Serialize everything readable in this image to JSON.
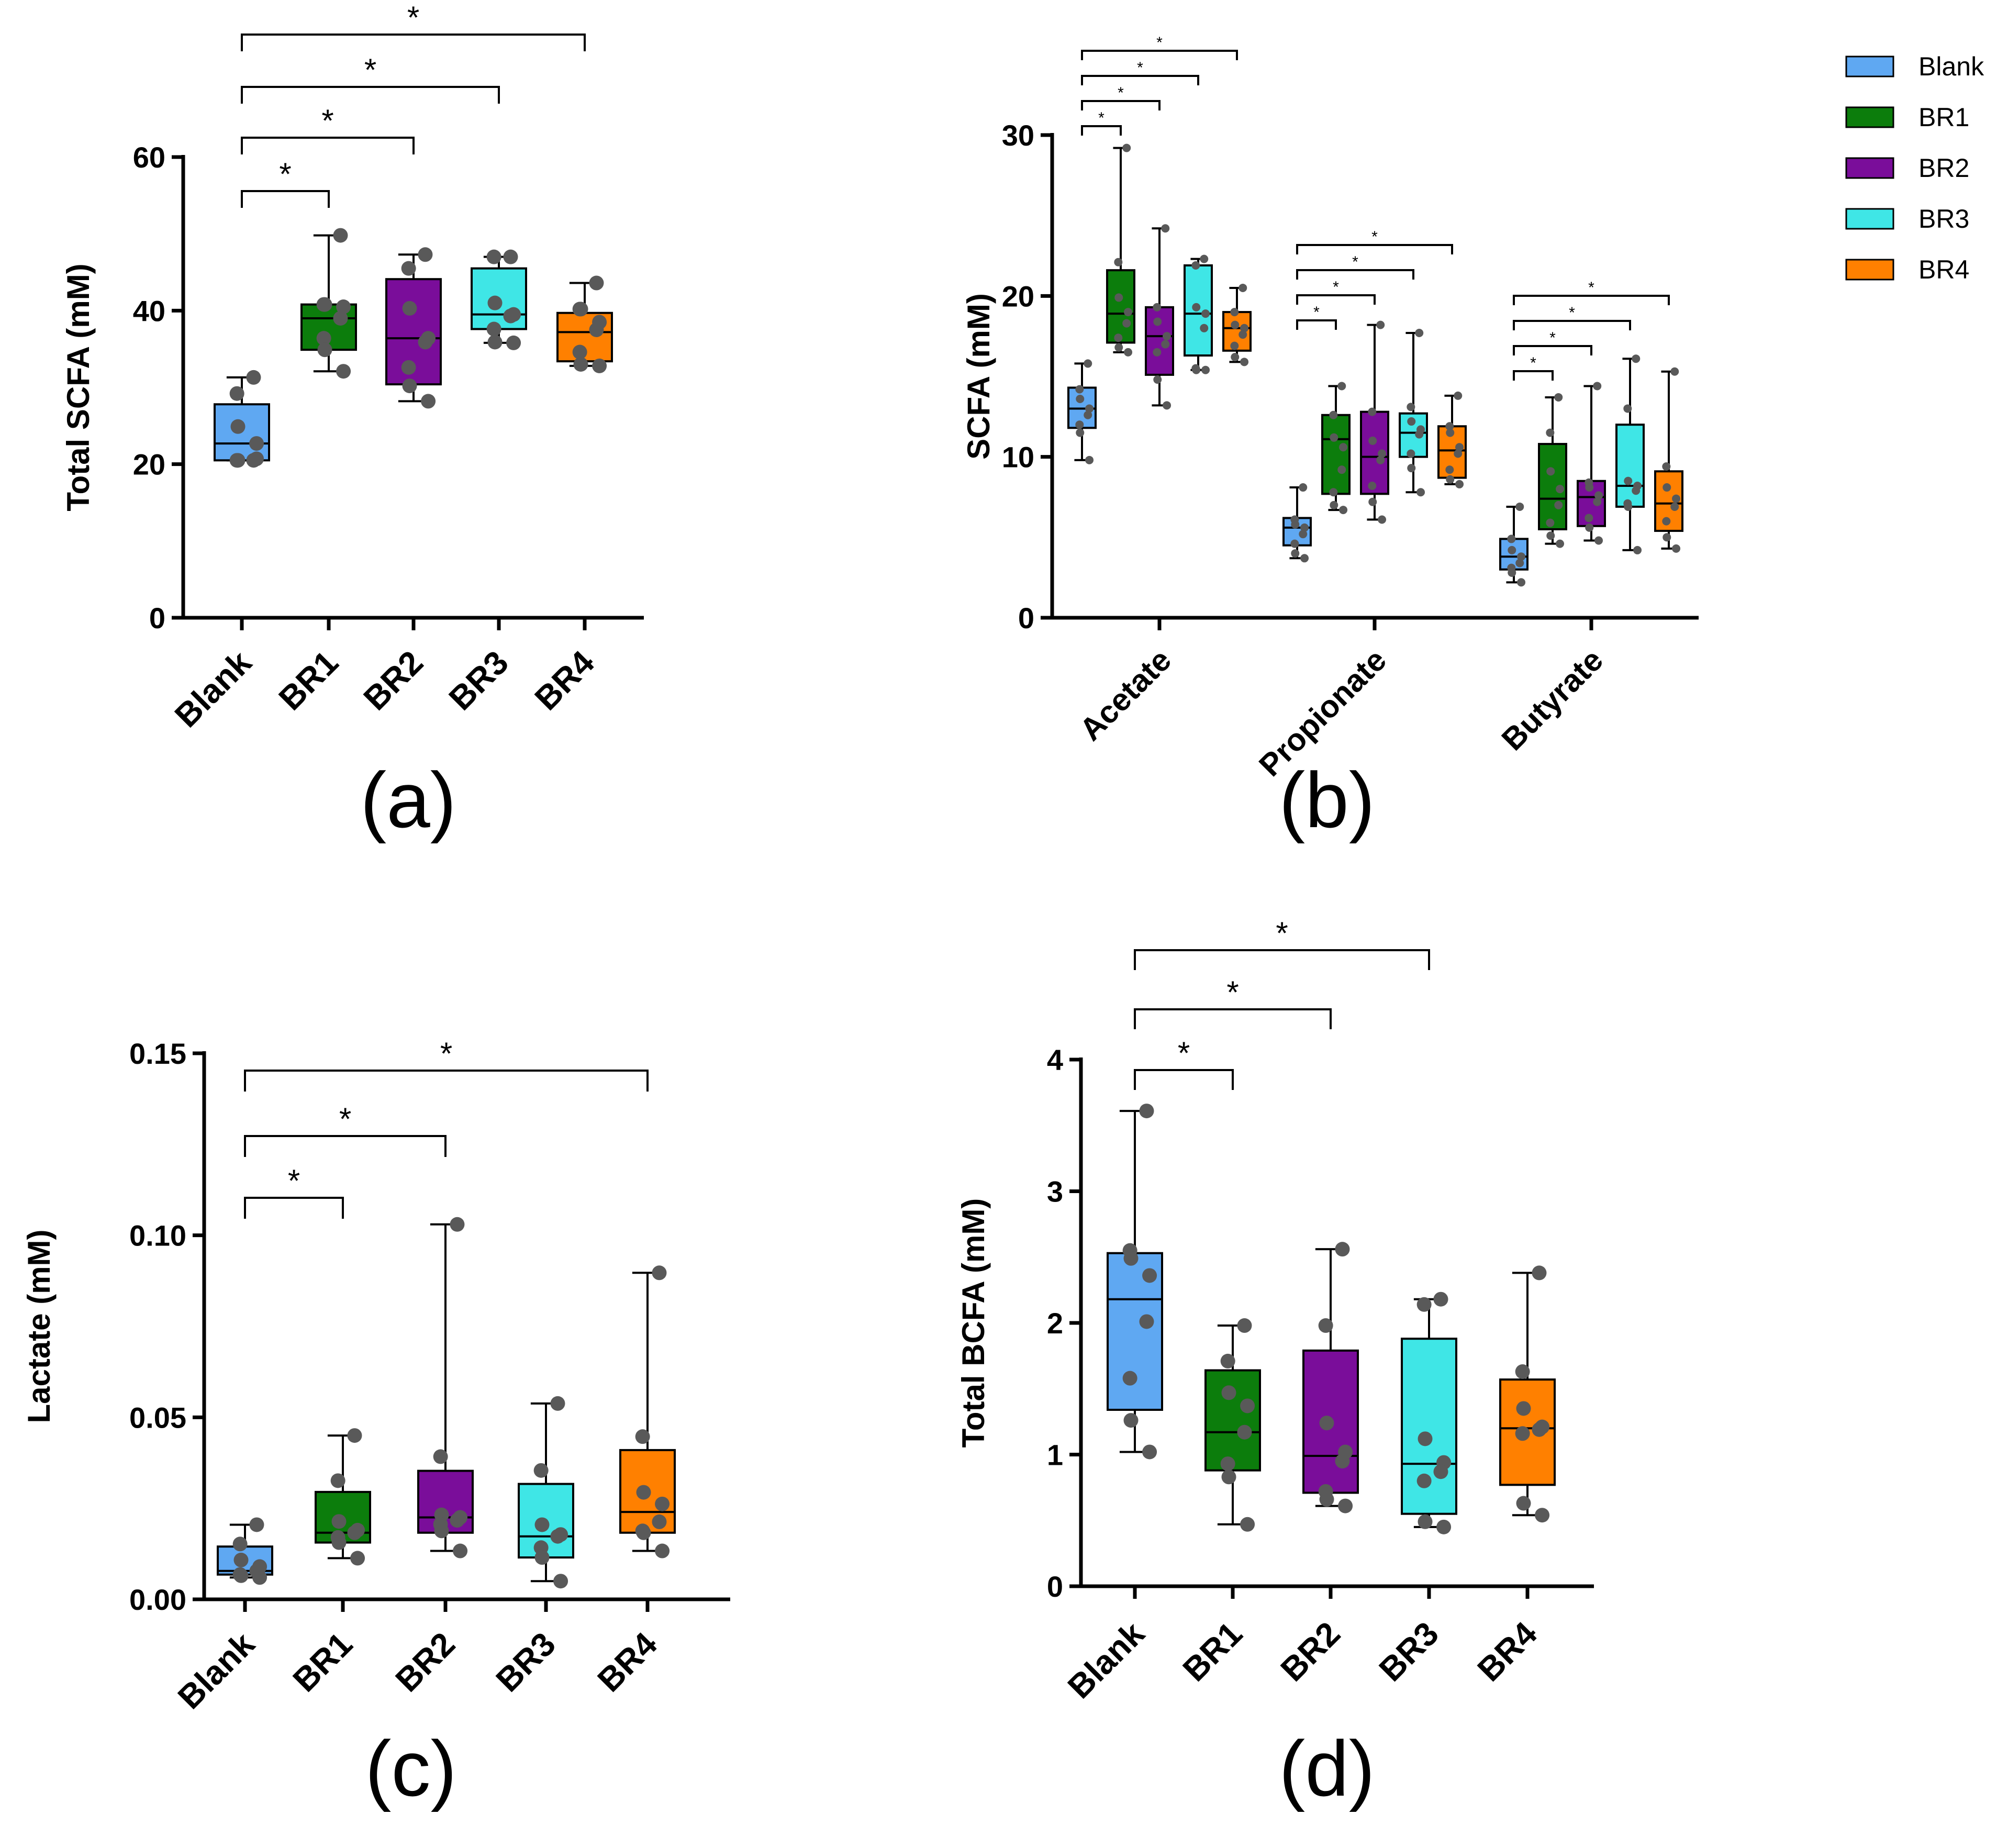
{
  "colors": {
    "Blank": "#5fa8f2",
    "BR1": "#0c7d0c",
    "BR2": "#7a0d9a",
    "BR3": "#3fe6e6",
    "BR4": "#ff8000",
    "point": "#595959"
  },
  "legend": {
    "entries": [
      "Blank",
      "BR1",
      "BR2",
      "BR3",
      "BR4"
    ]
  },
  "chart_data": [
    {
      "panel": "a",
      "panel_label": "(a)",
      "type": "box",
      "ylabel": "Total SCFA (mM)",
      "ylim": [
        0,
        60
      ],
      "yticks": [
        0,
        20,
        40,
        60
      ],
      "ytick_labels": [
        "0",
        "20",
        "40",
        "60"
      ],
      "categories": [
        "Blank",
        "BR1",
        "BR2",
        "BR3",
        "BR4"
      ],
      "boxes": [
        {
          "name": "Blank",
          "min": 20.5,
          "q1": 20.5,
          "median": 22.7,
          "q3": 27.8,
          "max": 31.3,
          "points": [
            31.3,
            29.2,
            24.9,
            22.7,
            20.5,
            20.5,
            20.5,
            20.7
          ]
        },
        {
          "name": "BR1",
          "min": 32.1,
          "q1": 34.9,
          "median": 39.0,
          "q3": 40.8,
          "max": 49.8,
          "points": [
            49.8,
            40.8,
            40.8,
            40.5,
            39.0,
            36.4,
            34.9,
            32.1
          ]
        },
        {
          "name": "BR2",
          "min": 28.2,
          "q1": 30.4,
          "median": 36.4,
          "q3": 44.1,
          "max": 47.3,
          "points": [
            47.3,
            45.5,
            40.3,
            36.4,
            35.9,
            32.6,
            30.2,
            28.2
          ]
        },
        {
          "name": "BR3",
          "min": 35.8,
          "q1": 37.6,
          "median": 39.5,
          "q3": 45.5,
          "max": 47.0,
          "points": [
            47.0,
            47.0,
            41.0,
            39.5,
            39.3,
            37.6,
            35.9,
            35.8
          ]
        },
        {
          "name": "BR4",
          "min": 32.8,
          "q1": 33.4,
          "median": 37.2,
          "q3": 39.7,
          "max": 43.6,
          "points": [
            43.6,
            40.2,
            40.2,
            38.5,
            37.5,
            34.6,
            33.0,
            32.8
          ]
        }
      ],
      "significance": [
        {
          "from": "Blank",
          "to": "BR1",
          "label": "*"
        },
        {
          "from": "Blank",
          "to": "BR2",
          "label": "*"
        },
        {
          "from": "Blank",
          "to": "BR3",
          "label": "*"
        },
        {
          "from": "Blank",
          "to": "BR4",
          "label": "*"
        }
      ]
    },
    {
      "panel": "b",
      "panel_label": "(b)",
      "type": "grouped-box",
      "ylabel": "SCFA (mM)",
      "ylim": [
        0,
        30
      ],
      "yticks": [
        0,
        10,
        20,
        30
      ],
      "ytick_labels": [
        "0",
        "10",
        "20",
        "30"
      ],
      "groups": [
        "Acetate",
        "Propionate",
        "Butyrate"
      ],
      "series_names": [
        "Blank",
        "BR1",
        "BR2",
        "BR3",
        "BR4"
      ],
      "boxes": [
        [
          {
            "name": "Blank",
            "min": 9.8,
            "q1": 11.8,
            "median": 13.0,
            "q3": 14.3,
            "max": 15.8,
            "points": [
              15.8,
              14.2,
              13.6,
              13.0,
              12.6,
              12.0,
              11.5,
              9.8
            ]
          },
          {
            "name": "BR1",
            "min": 16.5,
            "q1": 17.1,
            "median": 18.9,
            "q3": 21.6,
            "max": 29.2,
            "points": [
              29.2,
              22.1,
              19.9,
              19.0,
              18.3,
              17.4,
              16.8,
              16.5
            ]
          },
          {
            "name": "BR2",
            "min": 13.2,
            "q1": 15.1,
            "median": 17.5,
            "q3": 19.3,
            "max": 24.2,
            "points": [
              24.2,
              19.3,
              18.4,
              17.5,
              17.0,
              16.5,
              14.8,
              13.2
            ]
          },
          {
            "name": "BR3",
            "min": 15.4,
            "q1": 16.3,
            "median": 18.9,
            "q3": 21.9,
            "max": 22.3,
            "points": [
              22.3,
              21.9,
              19.3,
              18.9,
              18.0,
              15.5,
              15.4,
              15.4
            ]
          },
          {
            "name": "BR4",
            "min": 15.9,
            "q1": 16.6,
            "median": 18.0,
            "q3": 19.0,
            "max": 20.5,
            "points": [
              20.5,
              19.0,
              18.2,
              18.0,
              17.6,
              16.9,
              16.2,
              15.9
            ]
          }
        ],
        [
          {
            "name": "Blank",
            "min": 3.7,
            "q1": 4.5,
            "median": 5.6,
            "q3": 6.2,
            "max": 8.1,
            "points": [
              8.1,
              6.1,
              5.8,
              5.6,
              5.2,
              4.6,
              4.0,
              3.7
            ]
          },
          {
            "name": "BR1",
            "min": 6.7,
            "q1": 7.7,
            "median": 11.1,
            "q3": 12.6,
            "max": 14.4,
            "points": [
              14.4,
              12.6,
              11.2,
              10.6,
              9.2,
              7.8,
              7.0,
              6.7
            ]
          },
          {
            "name": "BR2",
            "min": 6.1,
            "q1": 7.7,
            "median": 10.0,
            "q3": 12.8,
            "max": 18.2,
            "points": [
              18.2,
              12.8,
              11.0,
              10.2,
              9.8,
              8.2,
              7.2,
              6.1
            ]
          },
          {
            "name": "BR3",
            "min": 7.8,
            "q1": 10.0,
            "median": 11.5,
            "q3": 12.7,
            "max": 17.7,
            "points": [
              17.7,
              13.1,
              12.2,
              11.7,
              11.4,
              10.2,
              9.3,
              7.8
            ]
          },
          {
            "name": "BR4",
            "min": 8.3,
            "q1": 8.7,
            "median": 10.4,
            "q3": 11.9,
            "max": 13.8,
            "points": [
              13.8,
              11.9,
              11.5,
              10.6,
              10.2,
              9.2,
              8.6,
              8.3
            ]
          }
        ],
        [
          {
            "name": "Blank",
            "min": 2.2,
            "q1": 3.0,
            "median": 3.8,
            "q3": 4.9,
            "max": 6.9,
            "points": [
              6.9,
              4.9,
              4.2,
              3.8,
              3.4,
              3.1,
              2.8,
              2.2
            ]
          },
          {
            "name": "BR1",
            "min": 4.6,
            "q1": 5.5,
            "median": 7.4,
            "q3": 10.8,
            "max": 13.7,
            "points": [
              13.7,
              11.5,
              9.1,
              8.0,
              7.0,
              5.9,
              5.1,
              4.6
            ]
          },
          {
            "name": "BR2",
            "min": 4.8,
            "q1": 5.7,
            "median": 7.5,
            "q3": 8.5,
            "max": 14.4,
            "points": [
              14.4,
              8.4,
              8.1,
              7.6,
              7.2,
              6.2,
              5.6,
              4.8
            ]
          },
          {
            "name": "BR3",
            "min": 4.2,
            "q1": 6.9,
            "median": 8.2,
            "q3": 12.0,
            "max": 16.1,
            "points": [
              16.1,
              13.0,
              8.5,
              8.2,
              7.9,
              7.1,
              6.9,
              4.2
            ]
          },
          {
            "name": "BR4",
            "min": 4.3,
            "q1": 5.4,
            "median": 7.1,
            "q3": 9.1,
            "max": 15.3,
            "points": [
              15.3,
              9.4,
              8.1,
              7.4,
              6.9,
              6.0,
              5.0,
              4.3
            ]
          }
        ]
      ],
      "significance": [
        {
          "group": "Acetate",
          "pairs": [
            [
              "Blank",
              "BR1"
            ],
            [
              "Blank",
              "BR2"
            ],
            [
              "Blank",
              "BR3"
            ],
            [
              "Blank",
              "BR4"
            ]
          ],
          "label": "*"
        },
        {
          "group": "Propionate",
          "pairs": [
            [
              "Blank",
              "BR1"
            ],
            [
              "Blank",
              "BR2"
            ],
            [
              "Blank",
              "BR3"
            ],
            [
              "Blank",
              "BR4"
            ]
          ],
          "label": "*"
        },
        {
          "group": "Butyrate",
          "pairs": [
            [
              "Blank",
              "BR1"
            ],
            [
              "Blank",
              "BR2"
            ],
            [
              "Blank",
              "BR3"
            ],
            [
              "Blank",
              "BR4"
            ]
          ],
          "label": "*"
        }
      ],
      "legend": "top-right"
    },
    {
      "panel": "c",
      "panel_label": "(c)",
      "type": "box",
      "ylabel": "Lactate (mM)",
      "ylim": [
        0,
        0.15
      ],
      "yticks": [
        0,
        0.05,
        0.1,
        0.15
      ],
      "ytick_labels": [
        "0.00",
        "0.05",
        "0.10",
        "0.15"
      ],
      "categories": [
        "Blank",
        "BR1",
        "BR2",
        "BR3",
        "BR4"
      ],
      "boxes": [
        {
          "name": "Blank",
          "min": 0.006,
          "q1": 0.0068,
          "median": 0.0078,
          "q3": 0.0145,
          "max": 0.0205,
          "points": [
            0.0205,
            0.0152,
            0.0108,
            0.009,
            0.0078,
            0.0068,
            0.0065,
            0.006
          ]
        },
        {
          "name": "BR1",
          "min": 0.0113,
          "q1": 0.0156,
          "median": 0.0183,
          "q3": 0.0295,
          "max": 0.045,
          "points": [
            0.045,
            0.0326,
            0.0214,
            0.019,
            0.0183,
            0.017,
            0.0156,
            0.0113
          ]
        },
        {
          "name": "BR2",
          "min": 0.0133,
          "q1": 0.0183,
          "median": 0.0225,
          "q3": 0.0353,
          "max": 0.103,
          "points": [
            0.103,
            0.0392,
            0.0232,
            0.0225,
            0.0217,
            0.0206,
            0.0188,
            0.0133
          ]
        },
        {
          "name": "BR3",
          "min": 0.005,
          "q1": 0.0115,
          "median": 0.0173,
          "q3": 0.0317,
          "max": 0.0538,
          "points": [
            0.0538,
            0.0354,
            0.0205,
            0.0178,
            0.0173,
            0.0142,
            0.0115,
            0.005
          ]
        },
        {
          "name": "BR4",
          "min": 0.0133,
          "q1": 0.0183,
          "median": 0.024,
          "q3": 0.041,
          "max": 0.0897,
          "points": [
            0.0897,
            0.0447,
            0.0294,
            0.0262,
            0.0213,
            0.0188,
            0.0183,
            0.0133
          ]
        }
      ],
      "significance": [
        {
          "from": "Blank",
          "to": "BR1",
          "label": "*"
        },
        {
          "from": "Blank",
          "to": "BR2",
          "label": "*"
        },
        {
          "from": "Blank",
          "to": "BR4",
          "label": "*"
        }
      ]
    },
    {
      "panel": "d",
      "panel_label": "(d)",
      "type": "box",
      "ylabel": "Total BCFA (mM)",
      "ylim": [
        0,
        4
      ],
      "yticks": [
        0,
        1,
        2,
        3,
        4
      ],
      "ytick_labels": [
        "0",
        "1",
        "2",
        "3",
        "4"
      ],
      "categories": [
        "Blank",
        "BR1",
        "BR2",
        "BR3",
        "BR4"
      ],
      "boxes": [
        {
          "name": "Blank",
          "min": 1.02,
          "q1": 1.34,
          "median": 2.18,
          "q3": 2.53,
          "max": 3.61,
          "points": [
            3.61,
            2.55,
            2.49,
            2.36,
            2.01,
            1.58,
            1.26,
            1.02
          ]
        },
        {
          "name": "BR1",
          "min": 0.47,
          "q1": 0.88,
          "median": 1.17,
          "q3": 1.64,
          "max": 1.98,
          "points": [
            1.98,
            1.71,
            1.47,
            1.37,
            1.17,
            0.93,
            0.83,
            0.47
          ]
        },
        {
          "name": "BR2",
          "min": 0.61,
          "q1": 0.71,
          "median": 0.99,
          "q3": 1.79,
          "max": 2.56,
          "points": [
            2.56,
            1.98,
            1.24,
            1.02,
            0.95,
            0.72,
            0.66,
            0.61
          ]
        },
        {
          "name": "BR3",
          "min": 0.45,
          "q1": 0.55,
          "median": 0.93,
          "q3": 1.88,
          "max": 2.18,
          "points": [
            2.18,
            2.14,
            1.12,
            0.94,
            0.87,
            0.8,
            0.49,
            0.45
          ]
        },
        {
          "name": "BR4",
          "min": 0.54,
          "q1": 0.77,
          "median": 1.2,
          "q3": 1.57,
          "max": 2.38,
          "points": [
            2.38,
            1.63,
            1.35,
            1.21,
            1.19,
            1.16,
            0.63,
            0.54
          ]
        }
      ],
      "significance": [
        {
          "from": "Blank",
          "to": "BR1",
          "label": "*"
        },
        {
          "from": "Blank",
          "to": "BR2",
          "label": "*"
        },
        {
          "from": "Blank",
          "to": "BR3",
          "label": "*"
        }
      ]
    }
  ]
}
